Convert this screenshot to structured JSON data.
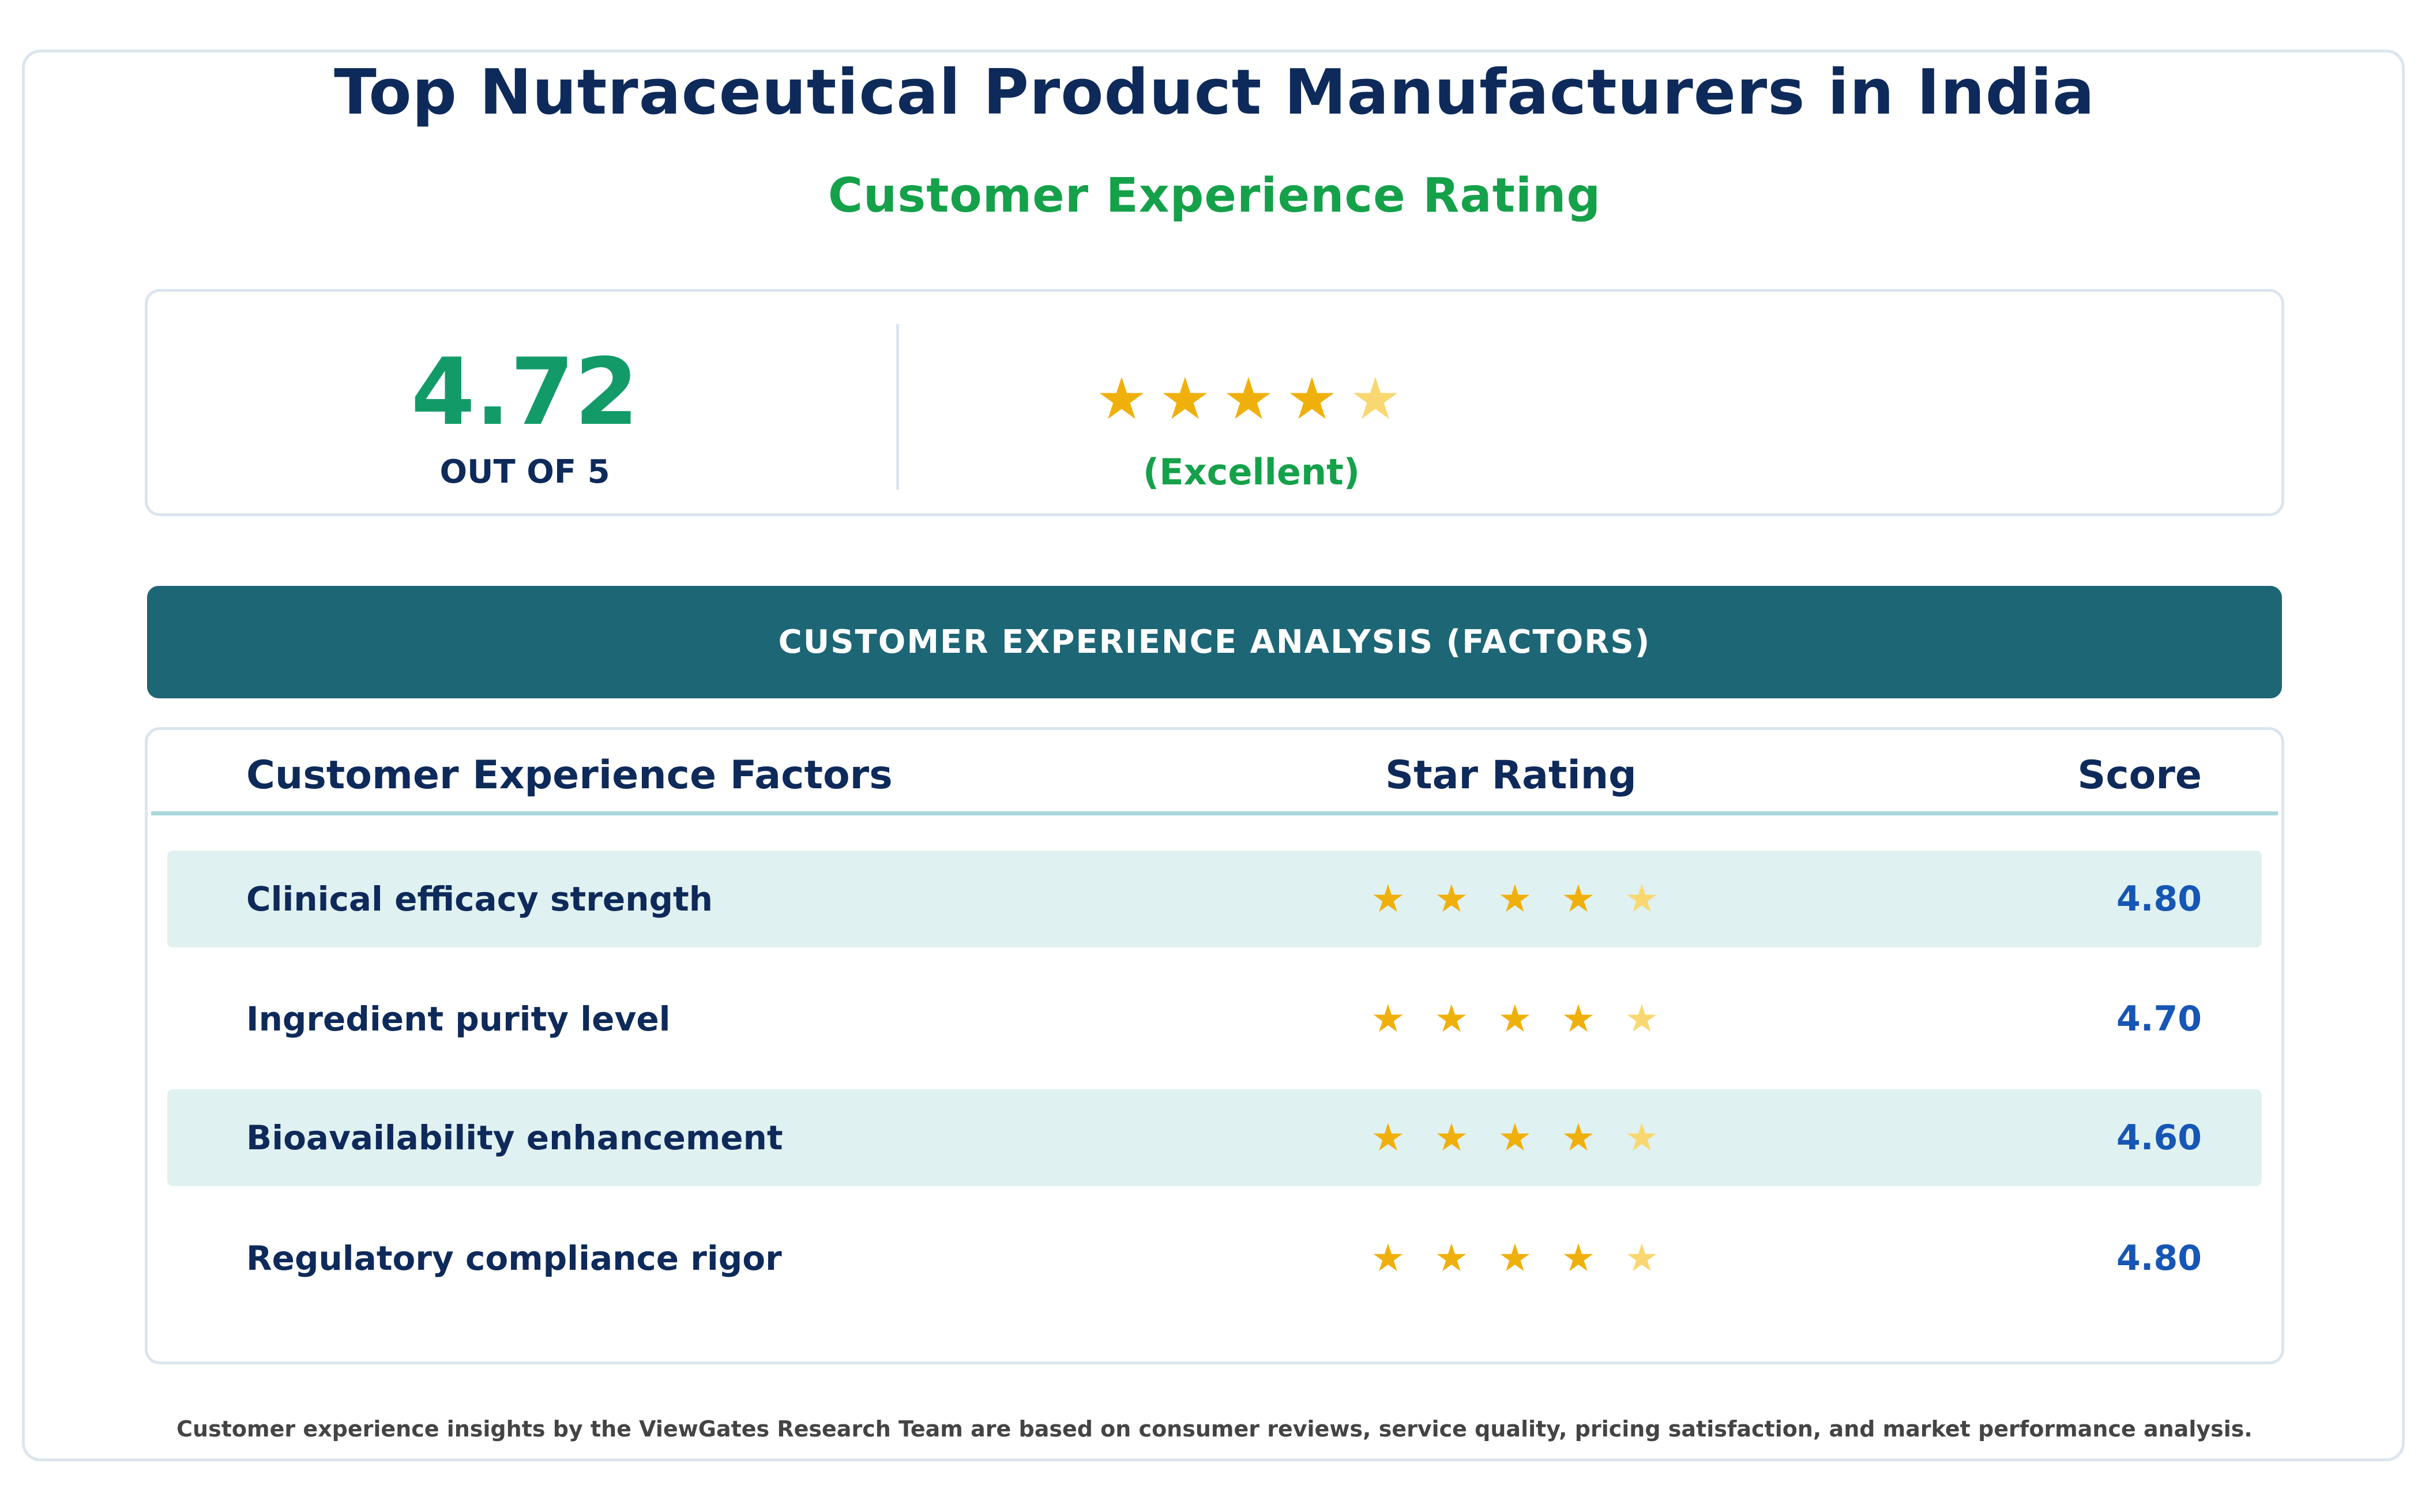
{
  "page": {
    "title": "Top Nutraceutical Product Manufacturers in India",
    "subtitle": "Customer Experience Rating"
  },
  "summary": {
    "score": "4.72",
    "out_of": "OUT OF 5",
    "rating_word": "(Excellent)",
    "stars_value": 4.72,
    "stars": [
      {
        "glyph": "★",
        "state": "full"
      },
      {
        "glyph": "★",
        "state": "full"
      },
      {
        "glyph": "★",
        "state": "full"
      },
      {
        "glyph": "★",
        "state": "full"
      },
      {
        "glyph": "★",
        "state": "partial"
      }
    ]
  },
  "section_banner": {
    "label": "CUSTOMER EXPERIENCE ANALYSIS (FACTORS)"
  },
  "table": {
    "headers": {
      "factor": "Customer Experience Factors",
      "rating": "Star Rating",
      "score": "Score"
    },
    "rows": [
      {
        "factor": "Clinical efficacy strength",
        "score": "4.80",
        "shaded": true,
        "stars": [
          {
            "glyph": "★",
            "state": "full"
          },
          {
            "glyph": "★",
            "state": "full"
          },
          {
            "glyph": "★",
            "state": "full"
          },
          {
            "glyph": "★",
            "state": "full"
          },
          {
            "glyph": "★",
            "state": "partial"
          }
        ]
      },
      {
        "factor": "Ingredient purity level",
        "score": "4.70",
        "shaded": false,
        "stars": [
          {
            "glyph": "★",
            "state": "full"
          },
          {
            "glyph": "★",
            "state": "full"
          },
          {
            "glyph": "★",
            "state": "full"
          },
          {
            "glyph": "★",
            "state": "full"
          },
          {
            "glyph": "★",
            "state": "partial"
          }
        ]
      },
      {
        "factor": "Bioavailability enhancement",
        "score": "4.60",
        "shaded": true,
        "stars": [
          {
            "glyph": "★",
            "state": "full"
          },
          {
            "glyph": "★",
            "state": "full"
          },
          {
            "glyph": "★",
            "state": "full"
          },
          {
            "glyph": "★",
            "state": "full"
          },
          {
            "glyph": "★",
            "state": "partial"
          }
        ]
      },
      {
        "factor": "Regulatory compliance rigor",
        "score": "4.80",
        "shaded": false,
        "stars": [
          {
            "glyph": "★",
            "state": "full"
          },
          {
            "glyph": "★",
            "state": "full"
          },
          {
            "glyph": "★",
            "state": "full"
          },
          {
            "glyph": "★",
            "state": "full"
          },
          {
            "glyph": "★",
            "state": "partial"
          }
        ]
      }
    ]
  },
  "footnote": "Customer experience insights by the ViewGates Research Team are based on consumer reviews, service quality, pricing satisfaction, and market performance analysis.",
  "colors": {
    "title": "#0e2a5a",
    "subtitle_green": "#15a14a",
    "score_green": "#129b68",
    "banner_teal": "#1d6676",
    "row_shade": "#e0f1f1",
    "score_blue": "#1656b4",
    "star_full": "#f0b00c",
    "star_partial": "#f9d871",
    "border": "#dce5ee"
  }
}
